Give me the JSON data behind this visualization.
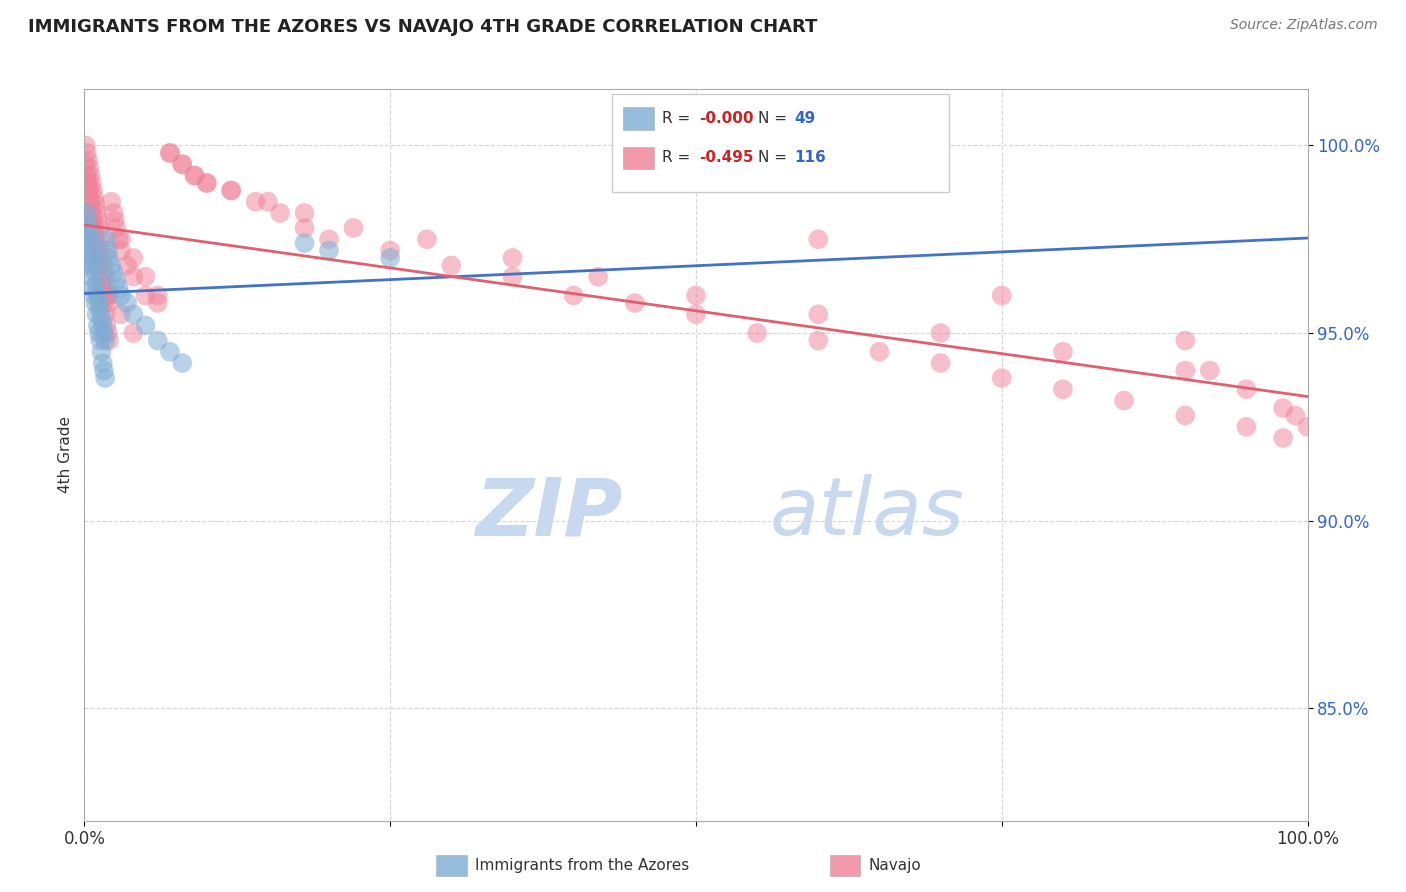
{
  "title": "IMMIGRANTS FROM THE AZORES VS NAVAJO 4TH GRADE CORRELATION CHART",
  "source_text": "Source: ZipAtlas.com",
  "ylabel": "4th Grade",
  "y_tick_labels": [
    "85.0%",
    "90.0%",
    "95.0%",
    "100.0%"
  ],
  "y_tick_values": [
    0.85,
    0.9,
    0.95,
    1.0
  ],
  "xlim": [
    0.0,
    1.0
  ],
  "ylim": [
    0.82,
    1.015
  ],
  "blue_R": "-0.000",
  "pink_R": "-0.495",
  "blue_N": "49",
  "pink_N": "116",
  "watermark_zip": "ZIP",
  "watermark_atlas": "atlas",
  "watermark_color_zip": "#c8d8ee",
  "watermark_color_atlas": "#c8d8ee",
  "blue_color": "#7dadd4",
  "pink_color": "#f08098",
  "blue_line_color": "#4472c4",
  "pink_line_color": "#e06070",
  "grid_color": "#cccccc",
  "background_color": "#ffffff",
  "blue_scatter_x": [
    0.002,
    0.003,
    0.004,
    0.005,
    0.006,
    0.007,
    0.008,
    0.009,
    0.01,
    0.011,
    0.012,
    0.013,
    0.014,
    0.015,
    0.016,
    0.017,
    0.002,
    0.003,
    0.004,
    0.005,
    0.006,
    0.007,
    0.008,
    0.009,
    0.01,
    0.011,
    0.012,
    0.013,
    0.014,
    0.015,
    0.016,
    0.017,
    0.018,
    0.019,
    0.02,
    0.022,
    0.024,
    0.026,
    0.028,
    0.03,
    0.035,
    0.04,
    0.05,
    0.06,
    0.07,
    0.08,
    0.18,
    0.2,
    0.25
  ],
  "blue_scatter_y": [
    0.98,
    0.975,
    0.97,
    0.968,
    0.965,
    0.962,
    0.96,
    0.958,
    0.955,
    0.952,
    0.95,
    0.948,
    0.945,
    0.942,
    0.94,
    0.938,
    0.982,
    0.978,
    0.976,
    0.974,
    0.972,
    0.97,
    0.968,
    0.966,
    0.963,
    0.96,
    0.958,
    0.956,
    0.954,
    0.952,
    0.95,
    0.948,
    0.975,
    0.972,
    0.97,
    0.968,
    0.966,
    0.964,
    0.962,
    0.96,
    0.958,
    0.955,
    0.952,
    0.948,
    0.945,
    0.942,
    0.974,
    0.972,
    0.97
  ],
  "pink_scatter_x": [
    0.001,
    0.002,
    0.003,
    0.004,
    0.005,
    0.006,
    0.007,
    0.008,
    0.009,
    0.01,
    0.011,
    0.012,
    0.013,
    0.014,
    0.015,
    0.016,
    0.017,
    0.018,
    0.019,
    0.02,
    0.022,
    0.024,
    0.026,
    0.028,
    0.03,
    0.035,
    0.04,
    0.05,
    0.06,
    0.07,
    0.08,
    0.09,
    0.1,
    0.12,
    0.15,
    0.18,
    0.22,
    0.28,
    0.35,
    0.42,
    0.5,
    0.6,
    0.7,
    0.8,
    0.9,
    0.95,
    0.98,
    0.99,
    1.0,
    0.001,
    0.002,
    0.003,
    0.004,
    0.005,
    0.006,
    0.007,
    0.008,
    0.009,
    0.01,
    0.011,
    0.012,
    0.013,
    0.014,
    0.015,
    0.016,
    0.017,
    0.018,
    0.019,
    0.02,
    0.025,
    0.03,
    0.04,
    0.05,
    0.06,
    0.07,
    0.08,
    0.09,
    0.1,
    0.12,
    0.14,
    0.16,
    0.18,
    0.2,
    0.25,
    0.3,
    0.35,
    0.4,
    0.45,
    0.5,
    0.55,
    0.6,
    0.65,
    0.7,
    0.75,
    0.8,
    0.85,
    0.9,
    0.95,
    0.98,
    0.002,
    0.003,
    0.004,
    0.005,
    0.006,
    0.007,
    0.008,
    0.009,
    0.01,
    0.015,
    0.02,
    0.03,
    0.04,
    0.6,
    0.75,
    0.9,
    0.92
  ],
  "pink_scatter_y": [
    0.995,
    0.992,
    0.99,
    0.988,
    0.985,
    0.983,
    0.98,
    0.978,
    0.975,
    0.972,
    0.97,
    0.968,
    0.965,
    0.962,
    0.96,
    0.958,
    0.955,
    0.952,
    0.95,
    0.948,
    0.985,
    0.982,
    0.978,
    0.975,
    0.972,
    0.968,
    0.965,
    0.96,
    0.958,
    0.998,
    0.995,
    0.992,
    0.99,
    0.988,
    0.985,
    0.982,
    0.978,
    0.975,
    0.97,
    0.965,
    0.96,
    0.955,
    0.95,
    0.945,
    0.94,
    0.935,
    0.93,
    0.928,
    0.925,
    1.0,
    0.998,
    0.996,
    0.994,
    0.992,
    0.99,
    0.988,
    0.986,
    0.984,
    0.982,
    0.98,
    0.978,
    0.975,
    0.972,
    0.97,
    0.968,
    0.965,
    0.962,
    0.96,
    0.958,
    0.98,
    0.975,
    0.97,
    0.965,
    0.96,
    0.998,
    0.995,
    0.992,
    0.99,
    0.988,
    0.985,
    0.982,
    0.978,
    0.975,
    0.972,
    0.968,
    0.965,
    0.96,
    0.958,
    0.955,
    0.95,
    0.948,
    0.945,
    0.942,
    0.938,
    0.935,
    0.932,
    0.928,
    0.925,
    0.922,
    0.99,
    0.988,
    0.985,
    0.982,
    0.98,
    0.978,
    0.975,
    0.972,
    0.97,
    0.965,
    0.96,
    0.955,
    0.95,
    0.975,
    0.96,
    0.948,
    0.94
  ]
}
